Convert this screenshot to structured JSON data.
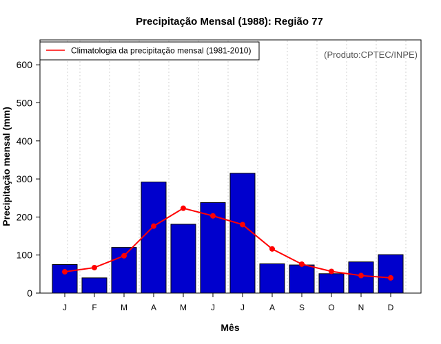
{
  "chart_data": {
    "type": "bar",
    "title": "Precipitação Mensal (1988): Região 77",
    "xlabel": "Mês",
    "ylabel": "Precipitação mensal (mm)",
    "categories": [
      "J",
      "F",
      "M",
      "A",
      "M",
      "J",
      "J",
      "A",
      "S",
      "O",
      "N",
      "D"
    ],
    "ylim": [
      0,
      650
    ],
    "yticks": [
      0,
      100,
      200,
      300,
      400,
      500,
      600
    ],
    "series": [
      {
        "name": "Precipitação mensal (1988)",
        "kind": "bar",
        "color": "#0000cd",
        "values": [
          75,
          40,
          120,
          292,
          181,
          238,
          315,
          77,
          74,
          51,
          82,
          101
        ]
      },
      {
        "name": "Climatologia da precipitação mensal (1981-2010)",
        "kind": "line",
        "color": "#ff0000",
        "values": [
          56,
          67,
          98,
          176,
          223,
          203,
          180,
          116,
          76,
          57,
          46,
          40
        ]
      }
    ],
    "legend": {
      "position": "top-left",
      "entries": [
        "Climatologia da precipitação mensal (1981-2010)"
      ]
    },
    "annotation": "(Produto:CPTEC/INPE)",
    "grid": "vertical-dotted"
  }
}
